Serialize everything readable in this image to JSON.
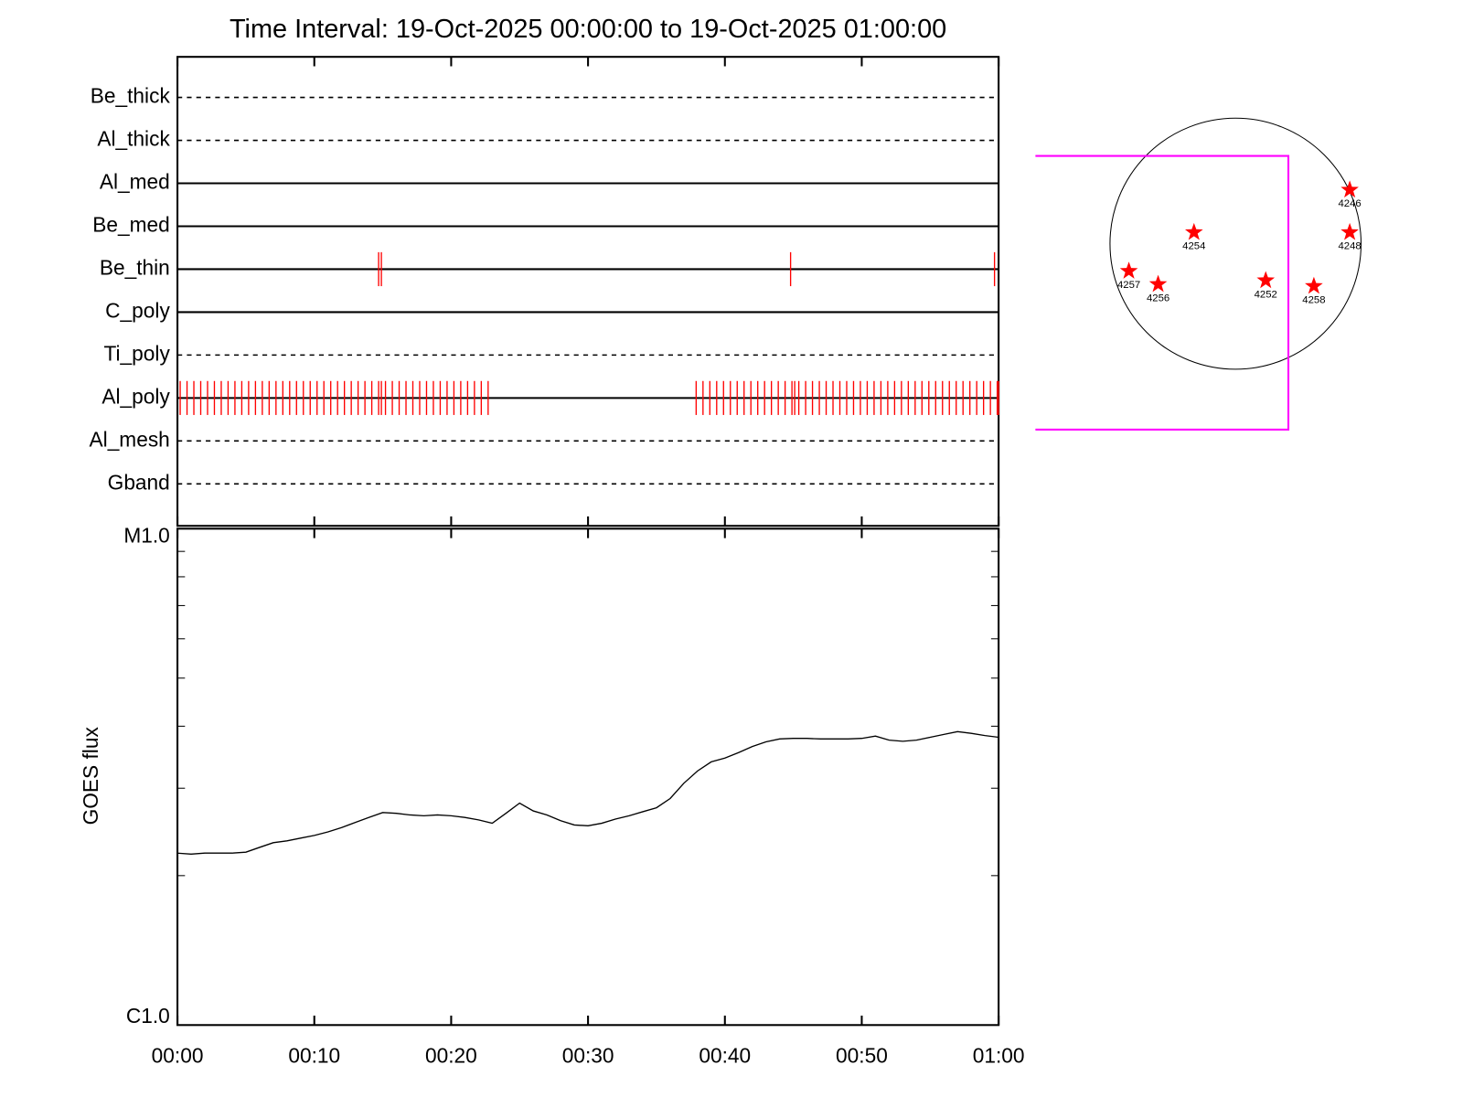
{
  "chart_data": [
    {
      "type": "timeline",
      "title": "Time Interval: 19-Oct-2025 00:00:00 to 19-Oct-2025 01:00:00",
      "categories": [
        "Be_thick",
        "Al_thick",
        "Al_med",
        "Be_med",
        "Be_thin",
        "C_poly",
        "Ti_poly",
        "Al_poly",
        "Al_mesh",
        "Gband"
      ],
      "line_styles": [
        "dashed",
        "dashed",
        "solid",
        "solid",
        "solid",
        "solid",
        "dashed",
        "solid",
        "dashed",
        "dashed"
      ],
      "events": [
        [],
        [],
        [],
        [],
        [
          14.7,
          14.9,
          44.8,
          59.7
        ],
        [],
        [],
        [
          0.2,
          0.7,
          1.2,
          1.7,
          2.2,
          2.7,
          3.2,
          3.7,
          4.2,
          4.7,
          5.2,
          5.7,
          6.2,
          6.7,
          7.2,
          7.7,
          8.2,
          8.7,
          9.2,
          9.7,
          10.2,
          10.7,
          11.2,
          11.7,
          12.2,
          12.7,
          13.2,
          13.7,
          14.2,
          14.7,
          14.9,
          15.2,
          15.7,
          16.2,
          16.7,
          17.2,
          17.7,
          18.2,
          18.7,
          19.2,
          19.7,
          20.2,
          20.7,
          21.2,
          21.7,
          22.2,
          22.7,
          37.9,
          38.4,
          38.9,
          39.4,
          39.9,
          40.4,
          40.9,
          41.4,
          41.9,
          42.4,
          42.9,
          43.4,
          43.9,
          44.4,
          44.9,
          45.1,
          45.4,
          45.9,
          46.4,
          46.9,
          47.4,
          47.9,
          48.4,
          48.9,
          49.4,
          49.9,
          50.4,
          50.9,
          51.4,
          51.9,
          52.4,
          52.9,
          53.4,
          53.9,
          54.4,
          54.9,
          55.4,
          55.9,
          56.4,
          56.9,
          57.4,
          57.9,
          58.4,
          58.9,
          59.4,
          59.9,
          60
        ],
        [],
        []
      ],
      "color": "#ff0000",
      "xlim": [
        0,
        60
      ],
      "xticks": [
        0,
        10,
        20,
        30,
        40,
        50,
        60
      ]
    },
    {
      "type": "line",
      "ylabel": "GOES flux",
      "x": [
        0,
        1,
        2,
        3,
        4,
        5,
        6,
        7,
        8,
        9,
        10,
        11,
        12,
        13,
        14,
        15,
        16,
        17,
        18,
        19,
        20,
        21,
        22,
        23,
        24,
        25,
        26,
        27,
        28,
        29,
        30,
        31,
        32,
        33,
        34,
        35,
        36,
        37,
        38,
        39,
        40,
        41,
        42,
        43,
        44,
        45,
        46,
        47,
        48,
        49,
        50,
        51,
        52,
        53,
        54,
        55,
        56,
        57,
        58,
        59,
        60
      ],
      "values": [
        2.22e-06,
        2.21e-06,
        2.22e-06,
        2.22e-06,
        2.22e-06,
        2.23e-06,
        2.28e-06,
        2.33e-06,
        2.35e-06,
        2.38e-06,
        2.41e-06,
        2.45e-06,
        2.5e-06,
        2.56e-06,
        2.62e-06,
        2.68e-06,
        2.67e-06,
        2.65e-06,
        2.64e-06,
        2.65e-06,
        2.64e-06,
        2.62e-06,
        2.59e-06,
        2.55e-06,
        2.67e-06,
        2.8e-06,
        2.7e-06,
        2.65e-06,
        2.58e-06,
        2.53e-06,
        2.52e-06,
        2.55e-06,
        2.6e-06,
        2.64e-06,
        2.69e-06,
        2.74e-06,
        2.86e-06,
        3.07e-06,
        3.25e-06,
        3.39e-06,
        3.45e-06,
        3.54e-06,
        3.64e-06,
        3.72e-06,
        3.77e-06,
        3.78e-06,
        3.78e-06,
        3.77e-06,
        3.77e-06,
        3.77e-06,
        3.78e-06,
        3.82e-06,
        3.75e-06,
        3.73e-06,
        3.75e-06,
        3.8e-06,
        3.85e-06,
        3.9e-06,
        3.87e-06,
        3.83e-06,
        3.8e-06
      ],
      "color": "#000000",
      "log_y": true,
      "ylim": [
        1e-06,
        1e-05
      ],
      "yticks": [
        {
          "value": 1e-06,
          "label": "C1.0"
        },
        {
          "value": 1e-05,
          "label": "M1.0"
        }
      ],
      "minor_yticks": [
        2e-06,
        3e-06,
        4e-06,
        5e-06,
        6e-06,
        7e-06,
        8e-06,
        9e-06
      ],
      "xlim": [
        0,
        60
      ],
      "xticks": [
        {
          "value": 0,
          "label": "00:00"
        },
        {
          "value": 10,
          "label": "00:10"
        },
        {
          "value": 20,
          "label": "00:20"
        },
        {
          "value": 30,
          "label": "00:30"
        },
        {
          "value": 40,
          "label": "00:40"
        },
        {
          "value": 50,
          "label": "00:50"
        },
        {
          "value": 60,
          "label": "01:00"
        }
      ]
    }
  ],
  "sun_map": {
    "regions": [
      "4246",
      "4248",
      "4254",
      "4257",
      "4256",
      "4252",
      "4258"
    ]
  }
}
